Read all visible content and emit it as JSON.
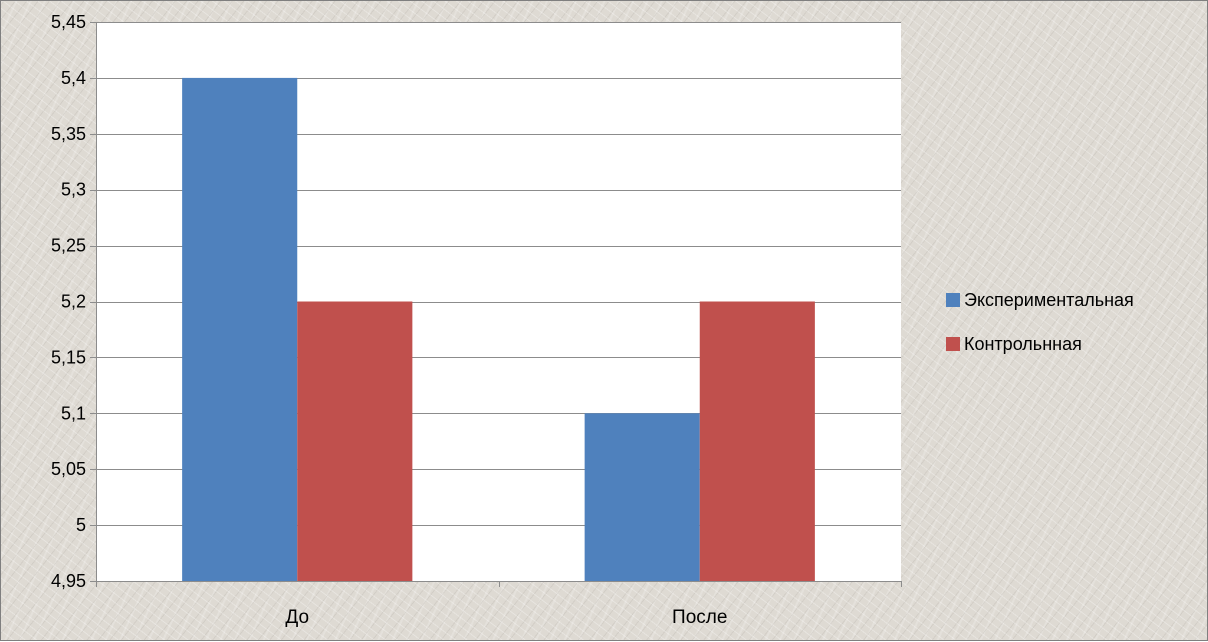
{
  "chart_data": {
    "type": "bar",
    "categories": [
      "До",
      "После"
    ],
    "series": [
      {
        "name": "Экспериментальная",
        "values": [
          5.4,
          5.1
        ],
        "color": "#4f81bd"
      },
      {
        "name": "Контрольнная",
        "values": [
          5.2,
          5.2
        ],
        "color": "#c0504d"
      }
    ],
    "ylim": [
      4.95,
      5.45
    ],
    "yticks": [
      4.95,
      5,
      5.05,
      5.1,
      5.15,
      5.2,
      5.25,
      5.3,
      5.35,
      5.4,
      5.45
    ],
    "ytick_labels": [
      "4,95",
      "5",
      "5,05",
      "5,1",
      "5,15",
      "5,2",
      "5,25",
      "5,3",
      "5,35",
      "5,4",
      "5,45"
    ],
    "grid": true,
    "legend_position": "right",
    "title": "",
    "xlabel": "",
    "ylabel": ""
  }
}
